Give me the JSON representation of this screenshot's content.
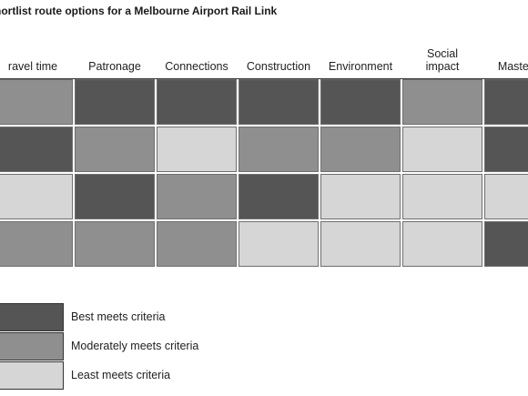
{
  "chart_data": {
    "type": "heatmap",
    "title": "hortlist route options for a Melbourne Airport Rail Link",
    "columns": [
      [
        "ravel time"
      ],
      [
        "Patronage"
      ],
      [
        "Connections"
      ],
      [
        "Construction"
      ],
      [
        "Environment"
      ],
      [
        "Social",
        "impact"
      ],
      [
        "Master pla"
      ]
    ],
    "levels": [
      {
        "key": "best",
        "label": "Best meets criteria",
        "color": "#555555"
      },
      {
        "key": "moderate",
        "label": "Moderately meets criteria",
        "color": "#8f8f8f"
      },
      {
        "key": "least",
        "label": "Least meets criteria",
        "color": "#d6d6d6"
      }
    ],
    "rows": [
      [
        "moderate",
        "best",
        "best",
        "best",
        "best",
        "moderate",
        "best"
      ],
      [
        "best",
        "moderate",
        "least",
        "moderate",
        "moderate",
        "least",
        "best"
      ],
      [
        "least",
        "best",
        "moderate",
        "best",
        "least",
        "least",
        "least"
      ],
      [
        "moderate",
        "moderate",
        "moderate",
        "least",
        "least",
        "least",
        "best"
      ]
    ]
  }
}
